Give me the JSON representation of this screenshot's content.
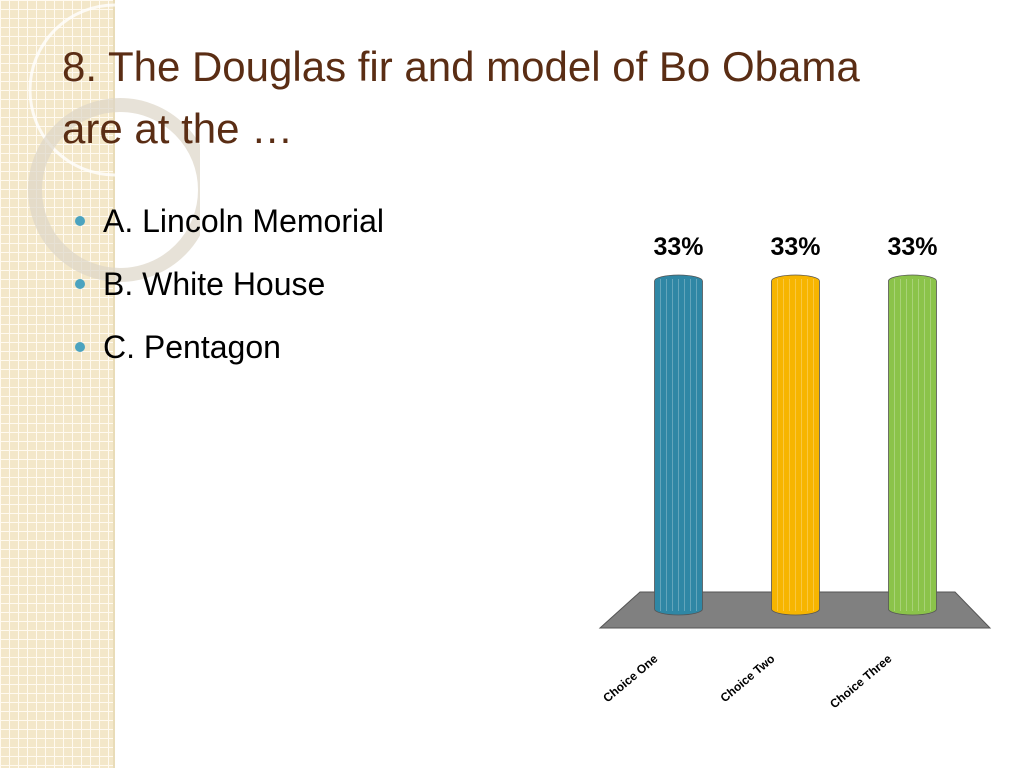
{
  "slide": {
    "title": "8.  The Douglas fir and model of Bo Obama are at the …",
    "bullets": [
      "A.  Lincoln Memorial",
      "B.  White House",
      "C.  Pentagon"
    ]
  },
  "chart_data": {
    "type": "bar",
    "categories": [
      "Choice One",
      "Choice Two",
      "Choice Three"
    ],
    "values": [
      33,
      33,
      33
    ],
    "value_labels": [
      "33%",
      "33%",
      "33%"
    ],
    "colors": [
      "#2f87a5",
      "#f7b500",
      "#8bc34a"
    ]
  }
}
